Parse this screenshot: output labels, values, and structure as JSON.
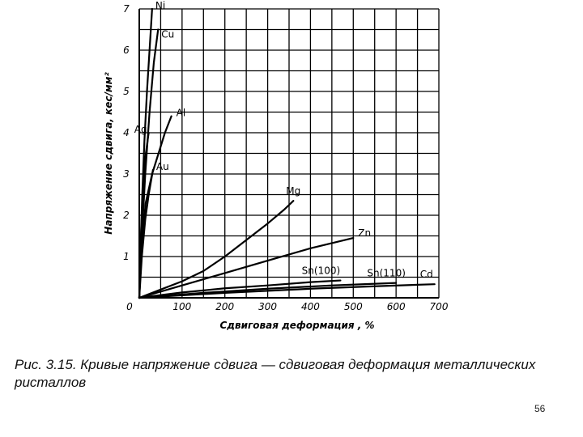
{
  "chart_data": {
    "type": "line",
    "xlabel": "Сдвиговая деформация , %",
    "ylabel": "Напряжение сдвига, кес/мм²",
    "xlim": [
      0,
      700
    ],
    "ylim": [
      0,
      7
    ],
    "x_ticks": [
      "0",
      "100",
      "200",
      "300",
      "400",
      "500",
      "600",
      "700"
    ],
    "y_ticks": [
      "1",
      "2",
      "3",
      "4",
      "5",
      "6",
      "7"
    ],
    "grid": true,
    "series": [
      {
        "name": "Ni",
        "points": [
          [
            0,
            0
          ],
          [
            3,
            1.2
          ],
          [
            7,
            2.5
          ],
          [
            12,
            3.8
          ],
          [
            18,
            5.0
          ],
          [
            24,
            6.0
          ],
          [
            30,
            7.0
          ]
        ]
      },
      {
        "name": "Cu",
        "points": [
          [
            0,
            0
          ],
          [
            6,
            1.5
          ],
          [
            14,
            3.0
          ],
          [
            24,
            4.5
          ],
          [
            34,
            5.7
          ],
          [
            44,
            6.5
          ]
        ]
      },
      {
        "name": "Ag",
        "points": [
          [
            0,
            0
          ],
          [
            4,
            1.5
          ],
          [
            8,
            2.5
          ],
          [
            14,
            3.4
          ],
          [
            22,
            4.0
          ]
        ]
      },
      {
        "name": "Al",
        "points": [
          [
            0,
            0
          ],
          [
            5,
            1.2
          ],
          [
            15,
            2.3
          ],
          [
            30,
            3.0
          ],
          [
            45,
            3.5
          ],
          [
            60,
            4.0
          ],
          [
            75,
            4.4
          ]
        ]
      },
      {
        "name": "Au",
        "points": [
          [
            0,
            0
          ],
          [
            6,
            1.0
          ],
          [
            14,
            1.9
          ],
          [
            22,
            2.5
          ],
          [
            32,
            3.1
          ]
        ]
      },
      {
        "name": "Mg",
        "points": [
          [
            0,
            0
          ],
          [
            50,
            0.2
          ],
          [
            100,
            0.4
          ],
          [
            150,
            0.65
          ],
          [
            200,
            1.0
          ],
          [
            250,
            1.4
          ],
          [
            300,
            1.8
          ],
          [
            340,
            2.15
          ],
          [
            360,
            2.35
          ]
        ]
      },
      {
        "name": "Zn",
        "points": [
          [
            0,
            0
          ],
          [
            100,
            0.3
          ],
          [
            200,
            0.6
          ],
          [
            300,
            0.9
          ],
          [
            400,
            1.2
          ],
          [
            500,
            1.45
          ]
        ]
      },
      {
        "name": "Sn(100)",
        "points": [
          [
            0,
            0
          ],
          [
            100,
            0.13
          ],
          [
            200,
            0.23
          ],
          [
            300,
            0.3
          ],
          [
            400,
            0.38
          ],
          [
            470,
            0.42
          ]
        ]
      },
      {
        "name": "Sn(110)",
        "points": [
          [
            0,
            0
          ],
          [
            150,
            0.12
          ],
          [
            300,
            0.22
          ],
          [
            450,
            0.3
          ],
          [
            600,
            0.36
          ]
        ]
      },
      {
        "name": "Cd",
        "points": [
          [
            0,
            0
          ],
          [
            200,
            0.12
          ],
          [
            400,
            0.22
          ],
          [
            550,
            0.28
          ],
          [
            690,
            0.33
          ]
        ]
      }
    ]
  },
  "caption": "Рис. 3.15. Кривые напряжение сдвига — сдвиговая деформация металлических ристаллов",
  "page_number": "56"
}
